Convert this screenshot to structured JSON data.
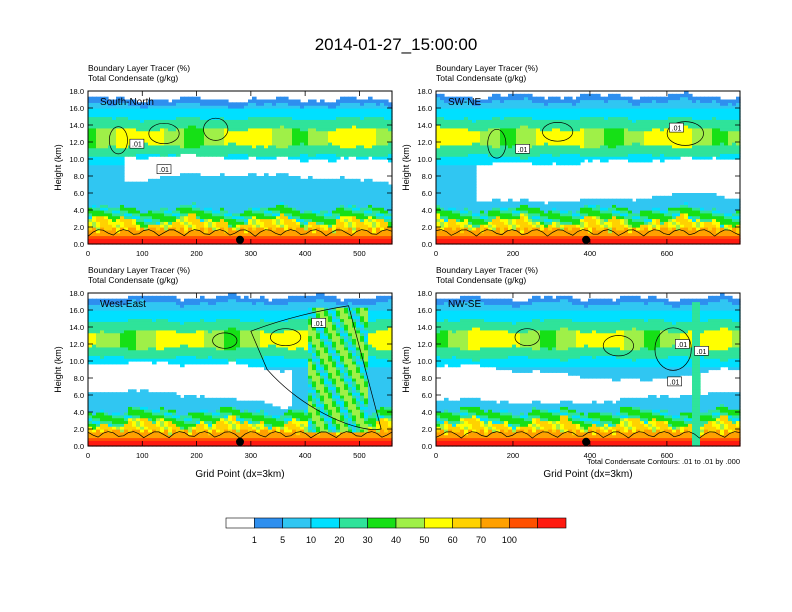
{
  "figure": {
    "title": "2014-01-27_15:00:00",
    "footnote": "Total Condensate Contours: .01 to .01 by .000"
  },
  "chart_data": [
    {
      "type": "heatmap",
      "panel_label": "South-North",
      "title_lines": [
        "Boundary Layer Tracer   (%)",
        "Total Condensate   (g/kg)"
      ],
      "xlabel": "",
      "ylabel": "Height (km)",
      "xlim": [
        0,
        560
      ],
      "ylim": [
        0,
        18
      ],
      "xticks": [
        0,
        100,
        200,
        300,
        400,
        500
      ],
      "yticks": [
        0.0,
        2.0,
        4.0,
        6.0,
        8.0,
        10.0,
        12.0,
        14.0,
        16.0,
        18.0
      ],
      "contour_labels": [
        ".01",
        ".01"
      ],
      "contour_label_pos": [
        [
          90,
          11.8
        ],
        [
          140,
          8.8
        ]
      ],
      "marker_x": 280
    },
    {
      "type": "heatmap",
      "panel_label": "SW-NE",
      "title_lines": [
        "Boundary Layer Tracer   (%)",
        "Total Condensate   (g/kg)"
      ],
      "xlabel": "",
      "ylabel": "Height (km)",
      "xlim": [
        0,
        790
      ],
      "ylim": [
        0,
        18
      ],
      "xticks": [
        0,
        200,
        400,
        600
      ],
      "yticks": [
        0.0,
        2.0,
        4.0,
        6.0,
        8.0,
        10.0,
        12.0,
        14.0,
        16.0,
        18.0
      ],
      "contour_labels": [
        ".01",
        ".01"
      ],
      "contour_label_pos": [
        [
          225,
          11.2
        ],
        [
          625,
          13.7
        ]
      ],
      "marker_x": 390
    },
    {
      "type": "heatmap",
      "panel_label": "West-East",
      "title_lines": [
        "Boundary Layer Tracer   (%)",
        "Total Condensate   (g/kg)"
      ],
      "xlabel": "Grid Point (dx=3km)",
      "ylabel": "Height (km)",
      "xlim": [
        0,
        560
      ],
      "ylim": [
        0,
        18
      ],
      "xticks": [
        0,
        100,
        200,
        300,
        400,
        500
      ],
      "yticks": [
        0.0,
        2.0,
        4.0,
        6.0,
        8.0,
        10.0,
        12.0,
        14.0,
        16.0,
        18.0
      ],
      "contour_labels": [
        ".01"
      ],
      "contour_label_pos": [
        [
          425,
          14.5
        ]
      ],
      "marker_x": 280
    },
    {
      "type": "heatmap",
      "panel_label": "NW-SE",
      "title_lines": [
        "Boundary Layer Tracer   (%)",
        "Total Condensate   (g/kg)"
      ],
      "xlabel": "Grid Point (dx=3km)",
      "ylabel": "Height (km)",
      "xlim": [
        0,
        790
      ],
      "ylim": [
        0,
        18
      ],
      "xticks": [
        0,
        200,
        400,
        600
      ],
      "yticks": [
        0.0,
        2.0,
        4.0,
        6.0,
        8.0,
        10.0,
        12.0,
        14.0,
        16.0,
        18.0
      ],
      "contour_labels": [
        ".01",
        ".01",
        ".01"
      ],
      "contour_label_pos": [
        [
          640,
          12.0
        ],
        [
          690,
          11.2
        ],
        [
          620,
          7.6
        ]
      ],
      "marker_x": 390
    }
  ],
  "colorbar": {
    "labels": [
      "1",
      "5",
      "10",
      "20",
      "30",
      "40",
      "50",
      "60",
      "70",
      "100"
    ],
    "colors": [
      "#ffffff",
      "#2e8fef",
      "#30c6f2",
      "#00e0ff",
      "#2fe39a",
      "#16e016",
      "#9ff048",
      "#ffff00",
      "#ffd200",
      "#ffa000",
      "#ff5000",
      "#ff1a10"
    ]
  }
}
